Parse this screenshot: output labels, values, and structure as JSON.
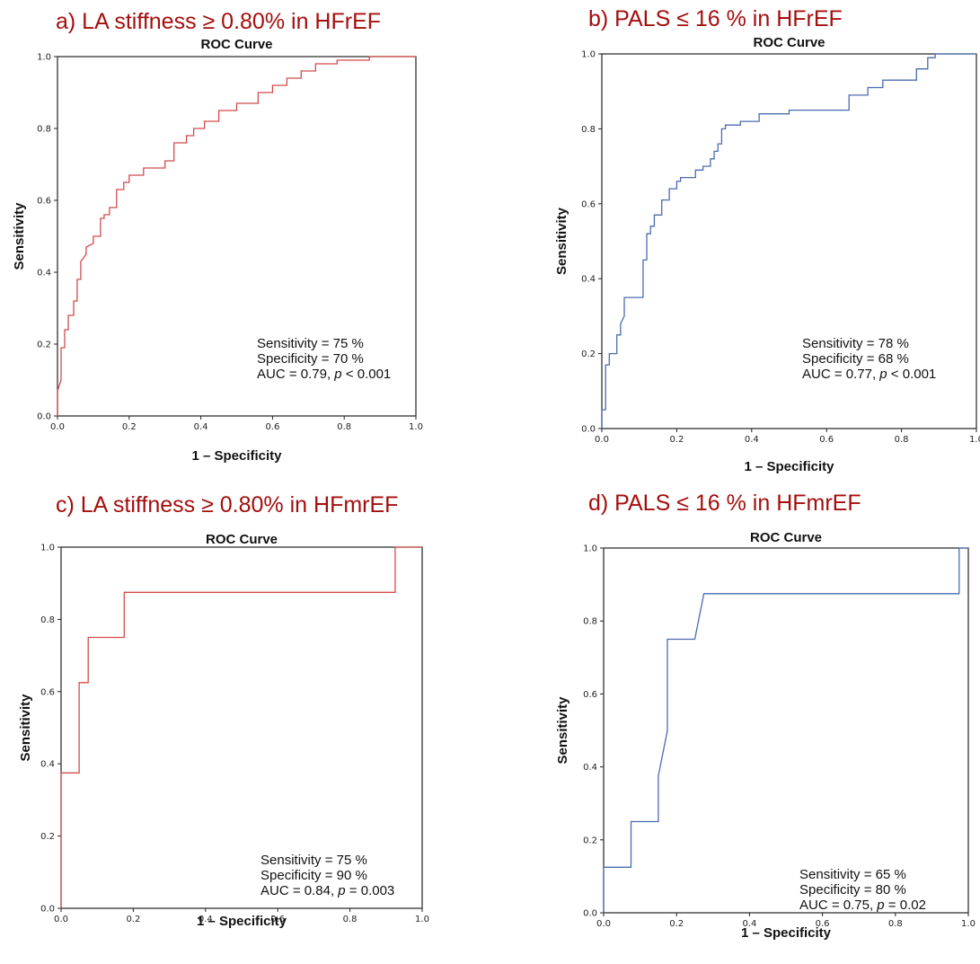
{
  "colors": {
    "heading": "#a50e0e",
    "red_curve": "#d24b4b",
    "blue_curve": "#4a6bb0"
  },
  "chart_data": [
    {
      "type": "line",
      "heading": "a) LA stiffness ≥ 0.80% in HFrEF",
      "title": "ROC Curve",
      "xlabel": "1 – Specificity",
      "ylabel": "Sensitivity",
      "xlim": [
        0,
        1
      ],
      "ylim": [
        0,
        1
      ],
      "xticks": [
        "0.0",
        "0.2",
        "0.4",
        "0.6",
        "0.8",
        "1.0"
      ],
      "yticks": [
        "0.0",
        "0.2",
        "0.4",
        "0.6",
        "0.8",
        "1.0"
      ],
      "grid": false,
      "line_color": "#d24b4b",
      "stats": [
        "Sensitivity = 75 %",
        "Specificity = 70 %"
      ],
      "auc": {
        "prefix": "AUC = 0.79, ",
        "p": "p",
        "suffix": " < 0.001"
      },
      "x": [
        0,
        0,
        0.01,
        0.01,
        0.02,
        0.02,
        0.03,
        0.03,
        0.045,
        0.045,
        0.055,
        0.055,
        0.065,
        0.065,
        0.08,
        0.08,
        0.1,
        0.1,
        0.12,
        0.12,
        0.13,
        0.13,
        0.145,
        0.145,
        0.165,
        0.165,
        0.185,
        0.185,
        0.2,
        0.2,
        0.24,
        0.24,
        0.3,
        0.3,
        0.325,
        0.325,
        0.36,
        0.36,
        0.38,
        0.38,
        0.41,
        0.41,
        0.45,
        0.45,
        0.5,
        0.5,
        0.56,
        0.56,
        0.6,
        0.6,
        0.64,
        0.64,
        0.68,
        0.68,
        0.72,
        0.72,
        0.78,
        0.78,
        0.87,
        0.87,
        1.0
      ],
      "y": [
        0,
        0.07,
        0.1,
        0.19,
        0.19,
        0.24,
        0.24,
        0.28,
        0.28,
        0.32,
        0.32,
        0.38,
        0.38,
        0.43,
        0.45,
        0.47,
        0.48,
        0.5,
        0.5,
        0.55,
        0.55,
        0.56,
        0.56,
        0.58,
        0.58,
        0.63,
        0.63,
        0.65,
        0.65,
        0.67,
        0.67,
        0.69,
        0.69,
        0.71,
        0.71,
        0.76,
        0.76,
        0.78,
        0.78,
        0.8,
        0.8,
        0.82,
        0.82,
        0.85,
        0.85,
        0.87,
        0.87,
        0.9,
        0.9,
        0.92,
        0.92,
        0.94,
        0.94,
        0.96,
        0.96,
        0.98,
        0.98,
        0.99,
        0.99,
        1.0,
        1.0
      ]
    },
    {
      "type": "line",
      "heading": "b) PALS ≤ 16 % in HFrEF",
      "title": "ROC Curve",
      "xlabel": "1 – Specificity",
      "ylabel": "Sensitivity",
      "xlim": [
        0,
        1
      ],
      "ylim": [
        0,
        1
      ],
      "xticks": [
        "0.0",
        "0.2",
        "0.4",
        "0.6",
        "0.8",
        "1.0"
      ],
      "yticks": [
        "0.0",
        "0.2",
        "0.4",
        "0.6",
        "0.8",
        "1.0"
      ],
      "grid": false,
      "line_color": "#4a6bb0",
      "stats": [
        "Sensitivity = 78 %",
        "Specificity = 68 %"
      ],
      "auc": {
        "prefix": "AUC = 0.77, ",
        "p": "p",
        "suffix": " < 0.001"
      },
      "x": [
        0,
        0,
        0.01,
        0.01,
        0.02,
        0.02,
        0.04,
        0.04,
        0.05,
        0.05,
        0.06,
        0.06,
        0.11,
        0.11,
        0.12,
        0.12,
        0.13,
        0.13,
        0.14,
        0.14,
        0.16,
        0.16,
        0.18,
        0.18,
        0.2,
        0.2,
        0.21,
        0.21,
        0.25,
        0.25,
        0.27,
        0.27,
        0.29,
        0.29,
        0.3,
        0.3,
        0.31,
        0.31,
        0.32,
        0.32,
        0.33,
        0.33,
        0.37,
        0.37,
        0.42,
        0.42,
        0.5,
        0.5,
        0.66,
        0.66,
        0.71,
        0.71,
        0.75,
        0.75,
        0.84,
        0.84,
        0.87,
        0.87,
        0.89,
        0.89,
        1.0
      ],
      "y": [
        0,
        0.05,
        0.05,
        0.17,
        0.17,
        0.2,
        0.2,
        0.25,
        0.25,
        0.28,
        0.3,
        0.35,
        0.35,
        0.45,
        0.45,
        0.52,
        0.52,
        0.54,
        0.54,
        0.57,
        0.57,
        0.61,
        0.61,
        0.64,
        0.64,
        0.66,
        0.66,
        0.67,
        0.67,
        0.69,
        0.69,
        0.7,
        0.7,
        0.72,
        0.72,
        0.74,
        0.74,
        0.76,
        0.76,
        0.8,
        0.8,
        0.81,
        0.81,
        0.82,
        0.82,
        0.84,
        0.84,
        0.85,
        0.85,
        0.89,
        0.89,
        0.91,
        0.91,
        0.93,
        0.93,
        0.96,
        0.96,
        0.99,
        0.99,
        1.0,
        1.0
      ]
    },
    {
      "type": "line",
      "heading": "c) LA stiffness ≥ 0.80% in HFmrEF",
      "title": "ROC Curve",
      "xlabel": "1 – Specificity",
      "ylabel": "Sensitivity",
      "xlim": [
        0,
        1
      ],
      "ylim": [
        0,
        1
      ],
      "xticks": [
        "0.0",
        "0.2",
        "0.4",
        "0.6",
        "0.8",
        "1.0"
      ],
      "yticks": [
        "0.0",
        "0.2",
        "0.4",
        "0.6",
        "0.8",
        "1.0"
      ],
      "grid": false,
      "line_color": "#d24b4b",
      "stats": [
        "Sensitivity = 75 %",
        "Specificity = 90 %"
      ],
      "auc": {
        "prefix": "AUC = 0.84, ",
        "p": "p",
        "suffix": " = 0.003"
      },
      "x": [
        0,
        0,
        0.05,
        0.05,
        0.075,
        0.075,
        0.175,
        0.175,
        0.925,
        0.925,
        1.0
      ],
      "y": [
        0,
        0.375,
        0.375,
        0.625,
        0.625,
        0.75,
        0.75,
        0.875,
        0.875,
        1.0,
        1.0
      ]
    },
    {
      "type": "line",
      "heading": "d) PALS ≤ 16 % in HFmrEF",
      "title": "ROC Curve",
      "xlabel": "1 – Specificity",
      "ylabel": "Sensitivity",
      "xlim": [
        0,
        1
      ],
      "ylim": [
        0,
        1
      ],
      "xticks": [
        "0.0",
        "0.2",
        "0.4",
        "0.6",
        "0.8",
        "1.0"
      ],
      "yticks": [
        "0.0",
        "0.2",
        "0.4",
        "0.6",
        "0.8",
        "1.0"
      ],
      "grid": false,
      "line_color": "#4a6bb0",
      "stats": [
        "Sensitivity = 65 %",
        "Specificity = 80 %"
      ],
      "auc": {
        "prefix": "AUC = 0.75, ",
        "p": "p",
        "suffix": " = 0.02"
      },
      "x": [
        0,
        0,
        0.075,
        0.075,
        0.15,
        0.15,
        0.175,
        0.175,
        0.25,
        0.275,
        0.975,
        0.975,
        1.0
      ],
      "y": [
        0,
        0.125,
        0.125,
        0.25,
        0.25,
        0.375,
        0.5,
        0.75,
        0.75,
        0.875,
        0.875,
        1.0,
        1.0
      ]
    }
  ]
}
